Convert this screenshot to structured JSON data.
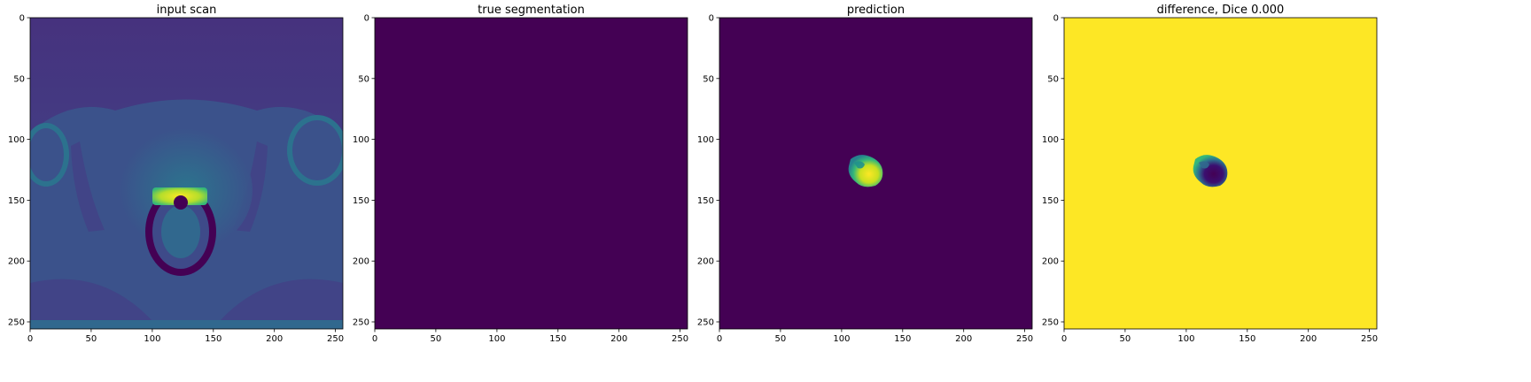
{
  "figure": {
    "panels": [
      {
        "title": "input scan"
      },
      {
        "title": "true segmentation"
      },
      {
        "title": "prediction"
      },
      {
        "title": "difference, Dice 0.000"
      }
    ]
  },
  "chart_data": [
    {
      "type": "heatmap",
      "title": "input scan",
      "content": "axial MRI slice, viridis colormap",
      "x_ticks": [
        "0",
        "50",
        "100",
        "150",
        "200",
        "250"
      ],
      "y_ticks": [
        "0",
        "50",
        "100",
        "150",
        "200",
        "250"
      ],
      "xlim": [
        0,
        256
      ],
      "ylim": [
        256,
        0
      ]
    },
    {
      "type": "heatmap",
      "title": "true segmentation",
      "content": "uniform zero mask",
      "x_ticks": [
        "0",
        "50",
        "100",
        "150",
        "200",
        "250"
      ],
      "y_ticks": [
        "0",
        "50",
        "100",
        "150",
        "200",
        "250"
      ],
      "xlim": [
        0,
        256
      ],
      "ylim": [
        256,
        0
      ]
    },
    {
      "type": "heatmap",
      "title": "prediction",
      "content": "predicted blob centred near x=125, y=112",
      "x_ticks": [
        "0",
        "50",
        "100",
        "150",
        "200",
        "250"
      ],
      "y_ticks": [
        "0",
        "50",
        "100",
        "150",
        "200",
        "250"
      ],
      "xlim": [
        0,
        256
      ],
      "ylim": [
        256,
        0
      ]
    },
    {
      "type": "heatmap",
      "title": "difference, Dice 0.000",
      "content": "inverted prediction blob near x=125, y=112",
      "x_ticks": [
        "0",
        "50",
        "100",
        "150",
        "200",
        "250"
      ],
      "y_ticks": [
        "0",
        "50",
        "100",
        "150",
        "200",
        "250"
      ],
      "xlim": [
        0,
        256
      ],
      "ylim": [
        256,
        0
      ]
    }
  ],
  "colors": {
    "viridis_low": "#440154",
    "viridis_dark": "#3b528b",
    "viridis_mid": "#21918c",
    "viridis_light": "#5ec962",
    "viridis_high": "#fde725",
    "scan_bg": "#46327e"
  }
}
